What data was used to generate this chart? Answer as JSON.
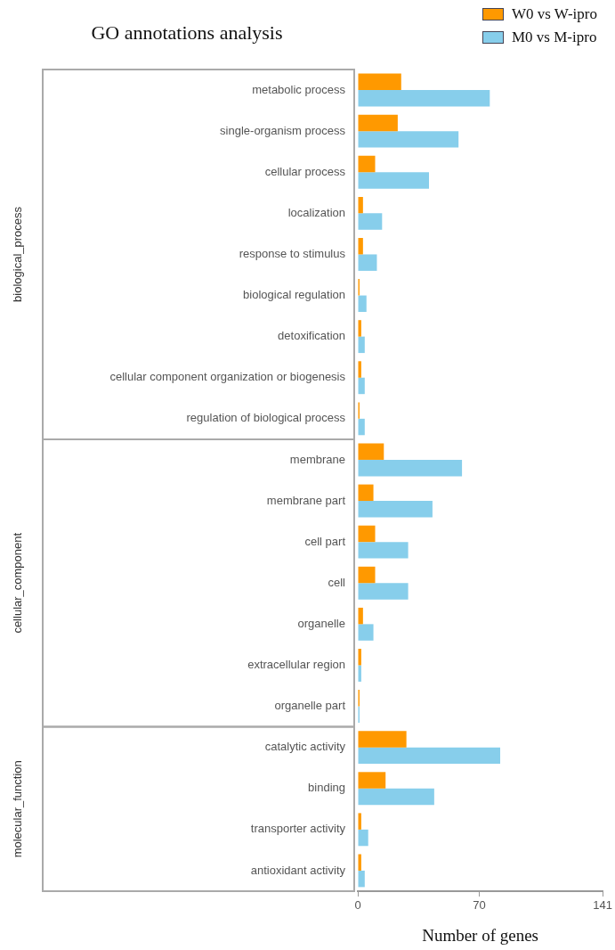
{
  "chart_data": {
    "type": "bar",
    "orientation": "horizontal",
    "title": "GO annotations analysis",
    "xlabel": "Number of genes",
    "categories": [
      "metabolic process",
      "single-organism process",
      "cellular process",
      "localization",
      "response to stimulus",
      "biological regulation",
      "detoxification",
      "cellular component organization or biogenesis",
      "regulation of biological process",
      "membrane",
      "membrane part",
      "cell part",
      "cell",
      "organelle",
      "extracellular region",
      "organelle part",
      "catalytic activity",
      "binding",
      "transporter activity",
      "antioxidant activity"
    ],
    "series": [
      {
        "name": "W0 vs W-ipro",
        "color": "#ff9900",
        "values": [
          25,
          23,
          10,
          3,
          3,
          1,
          2,
          2,
          1,
          15,
          9,
          10,
          10,
          3,
          2,
          1,
          28,
          16,
          2,
          2
        ]
      },
      {
        "name": "M0 vs M-ipro",
        "color": "#87ceeb",
        "values": [
          76,
          58,
          41,
          14,
          11,
          5,
          4,
          4,
          4,
          60,
          43,
          29,
          29,
          9,
          2,
          1,
          82,
          44,
          6,
          4
        ]
      }
    ],
    "xlim": [
      0,
      141
    ],
    "xticks": [
      0,
      70,
      141
    ],
    "grid": false,
    "legend": "top right",
    "annotations": [
      "biological_process",
      "cellular_component",
      "molecular_function"
    ]
  }
}
